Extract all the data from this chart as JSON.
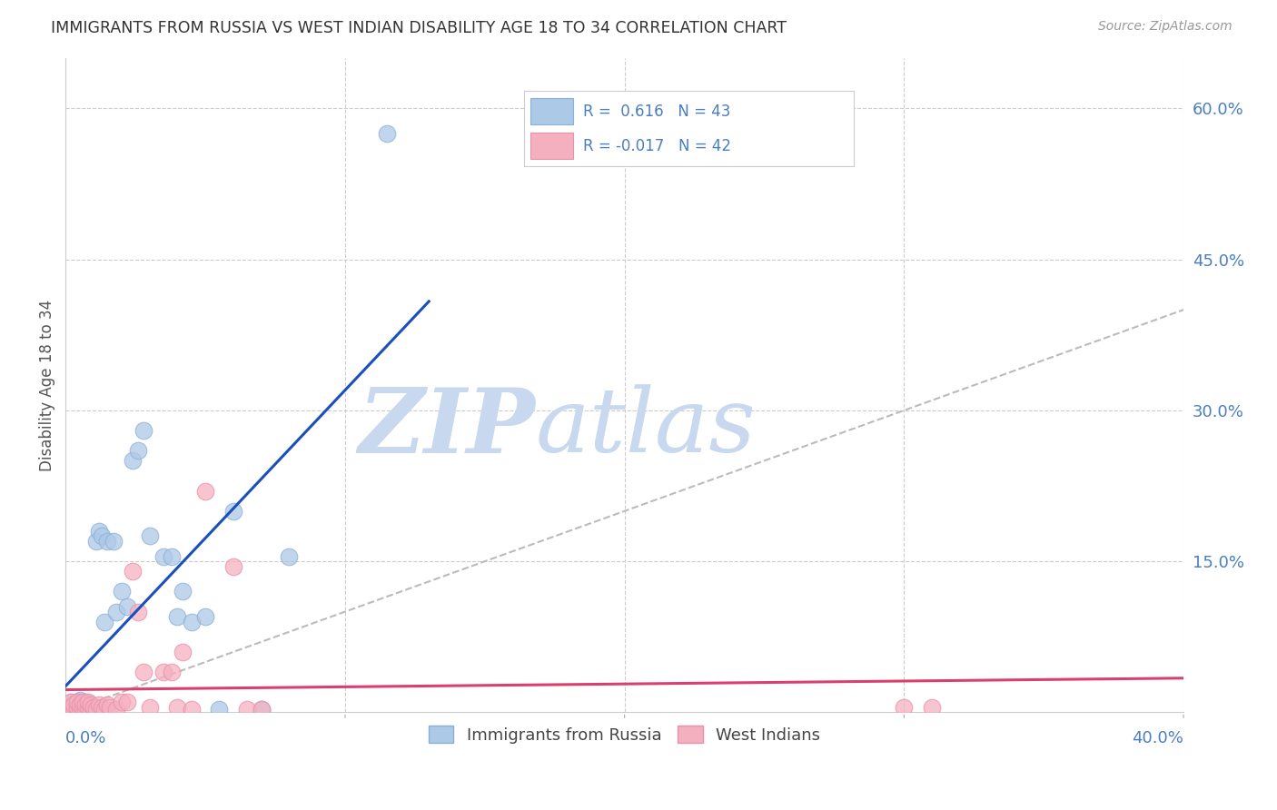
{
  "title": "IMMIGRANTS FROM RUSSIA VS WEST INDIAN DISABILITY AGE 18 TO 34 CORRELATION CHART",
  "source": "Source: ZipAtlas.com",
  "ylabel": "Disability Age 18 to 34",
  "right_ytick_vals": [
    0.6,
    0.45,
    0.3,
    0.15
  ],
  "xlim": [
    0.0,
    0.4
  ],
  "ylim": [
    0.0,
    0.65
  ],
  "russia_R": 0.616,
  "russia_N": 43,
  "westindian_R": -0.017,
  "westindian_N": 42,
  "russia_color": "#adc9e8",
  "russia_edge_color": "#8aafd4",
  "russia_line_color": "#1a4fbd",
  "westindian_color": "#f5b0c0",
  "westindian_edge_color": "#e890a8",
  "westindian_line_color": "#d94070",
  "legend_label_russia": "Immigrants from Russia",
  "legend_label_westindian": "West Indians",
  "watermark_zip": "ZIP",
  "watermark_atlas": "atlas",
  "watermark_color": "#c8d8ee",
  "grid_color": "#cccccc",
  "title_color": "#333333",
  "axis_label_color": "#4a7ec0",
  "russia_x": [
    0.001,
    0.002,
    0.002,
    0.003,
    0.003,
    0.004,
    0.004,
    0.005,
    0.005,
    0.005,
    0.006,
    0.006,
    0.007,
    0.007,
    0.008,
    0.008,
    0.009,
    0.009,
    0.01,
    0.011,
    0.012,
    0.013,
    0.014,
    0.015,
    0.017,
    0.018,
    0.02,
    0.022,
    0.024,
    0.026,
    0.028,
    0.03,
    0.035,
    0.038,
    0.04,
    0.042,
    0.045,
    0.05,
    0.055,
    0.06,
    0.07,
    0.08,
    0.115
  ],
  "russia_y": [
    0.005,
    0.005,
    0.01,
    0.003,
    0.008,
    0.005,
    0.01,
    0.003,
    0.007,
    0.012,
    0.005,
    0.008,
    0.003,
    0.01,
    0.005,
    0.008,
    0.003,
    0.008,
    0.005,
    0.17,
    0.18,
    0.175,
    0.09,
    0.17,
    0.17,
    0.1,
    0.12,
    0.105,
    0.25,
    0.26,
    0.28,
    0.175,
    0.155,
    0.155,
    0.095,
    0.12,
    0.09,
    0.095,
    0.003,
    0.2,
    0.003,
    0.155,
    0.575
  ],
  "westindian_x": [
    0.001,
    0.002,
    0.002,
    0.003,
    0.003,
    0.004,
    0.004,
    0.005,
    0.005,
    0.006,
    0.006,
    0.007,
    0.007,
    0.008,
    0.008,
    0.009,
    0.009,
    0.01,
    0.011,
    0.012,
    0.013,
    0.014,
    0.015,
    0.016,
    0.018,
    0.02,
    0.022,
    0.024,
    0.026,
    0.028,
    0.03,
    0.035,
    0.038,
    0.04,
    0.042,
    0.045,
    0.05,
    0.06,
    0.065,
    0.07,
    0.3,
    0.31
  ],
  "westindian_y": [
    0.005,
    0.005,
    0.01,
    0.003,
    0.008,
    0.005,
    0.01,
    0.003,
    0.008,
    0.005,
    0.01,
    0.003,
    0.008,
    0.005,
    0.01,
    0.003,
    0.008,
    0.005,
    0.003,
    0.008,
    0.005,
    0.003,
    0.008,
    0.005,
    0.003,
    0.01,
    0.01,
    0.14,
    0.1,
    0.04,
    0.005,
    0.04,
    0.04,
    0.005,
    0.06,
    0.003,
    0.22,
    0.145,
    0.003,
    0.003,
    0.005,
    0.005
  ],
  "diag_line_color": "#bbbbbb",
  "marker_size": 180
}
